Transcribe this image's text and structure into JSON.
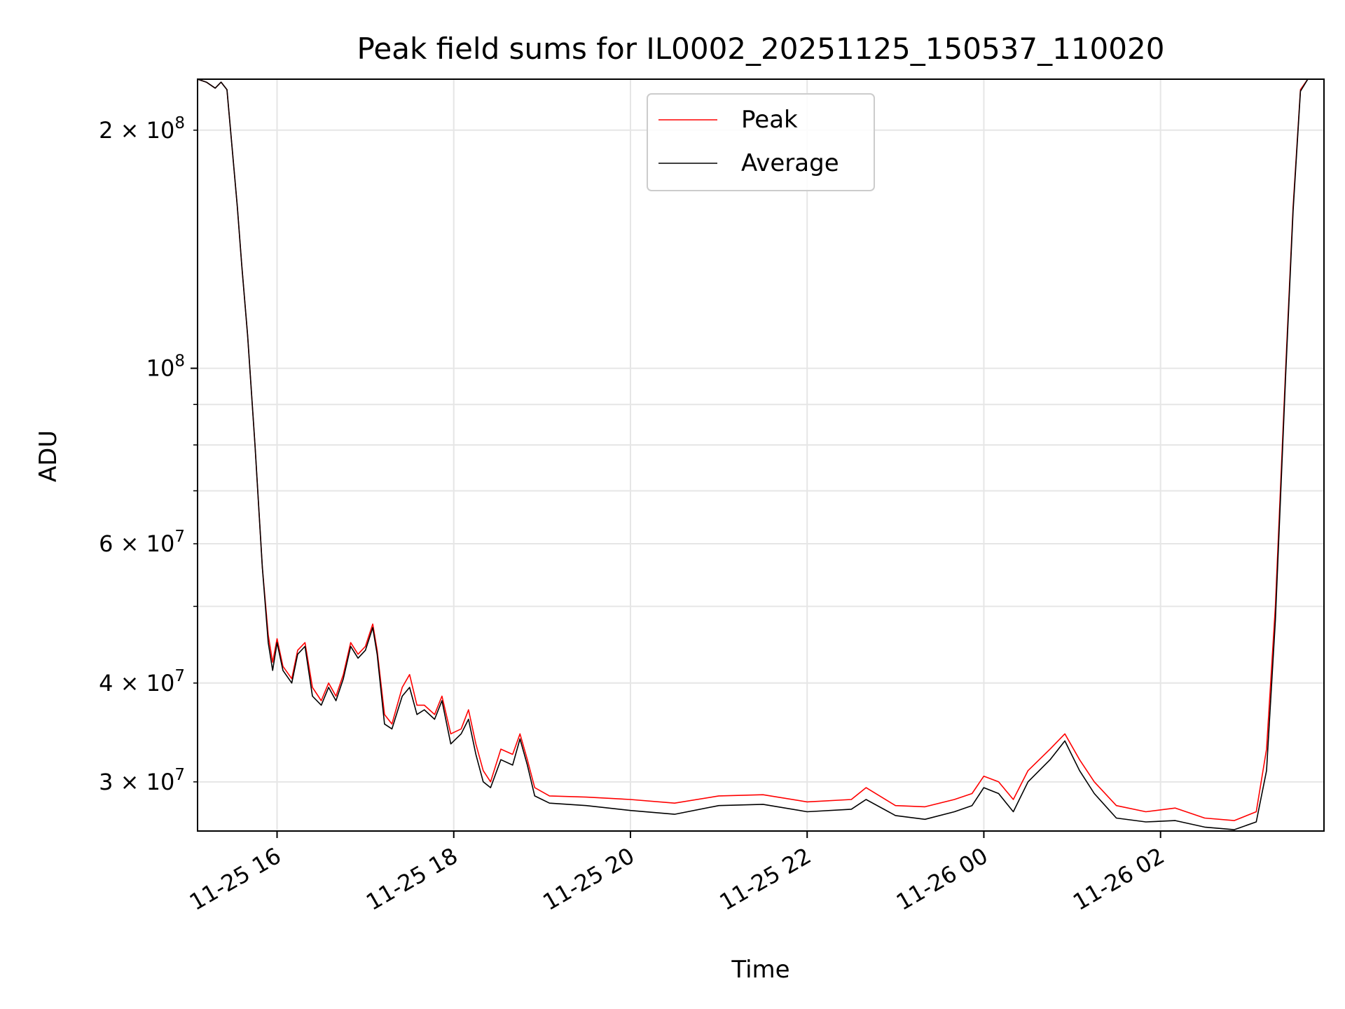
{
  "chart_data": {
    "type": "line",
    "title": "Peak field sums for IL0002_20251125_150537_110020",
    "xlabel": "Time",
    "ylabel": "ADU",
    "y_scale": "log",
    "xlim": [
      "2025-11-25 15:06",
      "2025-11-26 03:51"
    ],
    "ylim": [
      26000000,
      232000000
    ],
    "grid": true,
    "legend_position": "upper center",
    "x_ticks": [
      {
        "t": "2025-11-25 16:00",
        "label": "11-25 16"
      },
      {
        "t": "2025-11-25 18:00",
        "label": "11-25 18"
      },
      {
        "t": "2025-11-25 20:00",
        "label": "11-25 20"
      },
      {
        "t": "2025-11-25 22:00",
        "label": "11-25 22"
      },
      {
        "t": "2025-11-26 00:00",
        "label": "11-26 00"
      },
      {
        "t": "2025-11-26 02:00",
        "label": "11-26 02"
      }
    ],
    "y_ticks_major": [
      {
        "value": 100000000,
        "base": "10",
        "exp": "8"
      }
    ],
    "y_ticks_minor": [
      {
        "value": 30000000,
        "coef": "3",
        "base": "10",
        "exp": "7"
      },
      {
        "value": 40000000,
        "coef": "4",
        "base": "10",
        "exp": "7"
      },
      {
        "value": 60000000,
        "coef": "6",
        "base": "10",
        "exp": "7"
      },
      {
        "value": 200000000,
        "coef": "2",
        "base": "10",
        "exp": "8"
      }
    ],
    "y_ticks_minor_unlabeled": [
      50000000,
      70000000,
      80000000,
      90000000
    ],
    "series": [
      {
        "name": "Peak",
        "color": "#ff0000",
        "points": [
          [
            "2025-11-25 15:06",
            232000000
          ],
          [
            "2025-11-25 15:12",
            230000000
          ],
          [
            "2025-11-25 15:18",
            226000000
          ],
          [
            "2025-11-25 15:22",
            230000000
          ],
          [
            "2025-11-25 15:26",
            225000000
          ],
          [
            "2025-11-25 15:33",
            160000000
          ],
          [
            "2025-11-25 15:36",
            135000000
          ],
          [
            "2025-11-25 15:40",
            110000000
          ],
          [
            "2025-11-25 15:45",
            80000000
          ],
          [
            "2025-11-25 15:50",
            56000000
          ],
          [
            "2025-11-25 15:54",
            46000000
          ],
          [
            "2025-11-25 15:57",
            42500000
          ],
          [
            "2025-11-25 16:00",
            45500000
          ],
          [
            "2025-11-25 16:04",
            42000000
          ],
          [
            "2025-11-25 16:10",
            40500000
          ],
          [
            "2025-11-25 16:14",
            44000000
          ],
          [
            "2025-11-25 16:19",
            45000000
          ],
          [
            "2025-11-25 16:24",
            39500000
          ],
          [
            "2025-11-25 16:30",
            38000000
          ],
          [
            "2025-11-25 16:35",
            40000000
          ],
          [
            "2025-11-25 16:40",
            38500000
          ],
          [
            "2025-11-25 16:45",
            41000000
          ],
          [
            "2025-11-25 16:50",
            45000000
          ],
          [
            "2025-11-25 16:55",
            43500000
          ],
          [
            "2025-11-25 17:00",
            44500000
          ],
          [
            "2025-11-25 17:05",
            47500000
          ],
          [
            "2025-11-25 17:08",
            44000000
          ],
          [
            "2025-11-25 17:13",
            36500000
          ],
          [
            "2025-11-25 17:18",
            35500000
          ],
          [
            "2025-11-25 17:25",
            39500000
          ],
          [
            "2025-11-25 17:30",
            41000000
          ],
          [
            "2025-11-25 17:35",
            37500000
          ],
          [
            "2025-11-25 17:40",
            37500000
          ],
          [
            "2025-11-25 17:47",
            36500000
          ],
          [
            "2025-11-25 17:52",
            38500000
          ],
          [
            "2025-11-25 17:58",
            34500000
          ],
          [
            "2025-11-25 18:05",
            35000000
          ],
          [
            "2025-11-25 18:10",
            37000000
          ],
          [
            "2025-11-25 18:15",
            33500000
          ],
          [
            "2025-11-25 18:20",
            31000000
          ],
          [
            "2025-11-25 18:25",
            30000000
          ],
          [
            "2025-11-25 18:32",
            33000000
          ],
          [
            "2025-11-25 18:40",
            32500000
          ],
          [
            "2025-11-25 18:45",
            34500000
          ],
          [
            "2025-11-25 18:50",
            32000000
          ],
          [
            "2025-11-25 18:55",
            29500000
          ],
          [
            "2025-11-25 19:05",
            28800000
          ],
          [
            "2025-11-25 19:30",
            28700000
          ],
          [
            "2025-11-25 20:00",
            28500000
          ],
          [
            "2025-11-25 20:30",
            28200000
          ],
          [
            "2025-11-25 21:00",
            28800000
          ],
          [
            "2025-11-25 21:30",
            28900000
          ],
          [
            "2025-11-25 22:00",
            28300000
          ],
          [
            "2025-11-25 22:30",
            28500000
          ],
          [
            "2025-11-25 22:40",
            29500000
          ],
          [
            "2025-11-25 23:00",
            28000000
          ],
          [
            "2025-11-25 23:20",
            27900000
          ],
          [
            "2025-11-25 23:40",
            28500000
          ],
          [
            "2025-11-25 23:52",
            29000000
          ],
          [
            "2025-11-26 00:00",
            30500000
          ],
          [
            "2025-11-26 00:10",
            30000000
          ],
          [
            "2025-11-26 00:20",
            28500000
          ],
          [
            "2025-11-26 00:30",
            31000000
          ],
          [
            "2025-11-26 00:45",
            33000000
          ],
          [
            "2025-11-26 00:55",
            34500000
          ],
          [
            "2025-11-26 01:05",
            32000000
          ],
          [
            "2025-11-26 01:15",
            30000000
          ],
          [
            "2025-11-26 01:30",
            28000000
          ],
          [
            "2025-11-26 01:50",
            27500000
          ],
          [
            "2025-11-26 02:10",
            27800000
          ],
          [
            "2025-11-26 02:30",
            27000000
          ],
          [
            "2025-11-26 02:50",
            26800000
          ],
          [
            "2025-11-26 03:05",
            27500000
          ],
          [
            "2025-11-26 03:12",
            33000000
          ],
          [
            "2025-11-26 03:18",
            50000000
          ],
          [
            "2025-11-26 03:25",
            100000000
          ],
          [
            "2025-11-26 03:30",
            160000000
          ],
          [
            "2025-11-26 03:35",
            225000000
          ],
          [
            "2025-11-26 03:40",
            232000000
          ],
          [
            "2025-11-26 03:51",
            232000000
          ]
        ]
      },
      {
        "name": "Average",
        "color": "#000000",
        "points": [
          [
            "2025-11-25 15:06",
            232000000
          ],
          [
            "2025-11-25 15:12",
            230000000
          ],
          [
            "2025-11-25 15:18",
            226000000
          ],
          [
            "2025-11-25 15:22",
            230000000
          ],
          [
            "2025-11-25 15:26",
            225000000
          ],
          [
            "2025-11-25 15:33",
            160000000
          ],
          [
            "2025-11-25 15:36",
            135000000
          ],
          [
            "2025-11-25 15:40",
            110000000
          ],
          [
            "2025-11-25 15:45",
            80000000
          ],
          [
            "2025-11-25 15:50",
            56000000
          ],
          [
            "2025-11-25 15:54",
            45000000
          ],
          [
            "2025-11-25 15:57",
            41500000
          ],
          [
            "2025-11-25 16:00",
            45000000
          ],
          [
            "2025-11-25 16:04",
            41500000
          ],
          [
            "2025-11-25 16:10",
            40000000
          ],
          [
            "2025-11-25 16:14",
            43500000
          ],
          [
            "2025-11-25 16:19",
            44500000
          ],
          [
            "2025-11-25 16:24",
            38500000
          ],
          [
            "2025-11-25 16:30",
            37500000
          ],
          [
            "2025-11-25 16:35",
            39500000
          ],
          [
            "2025-11-25 16:40",
            38000000
          ],
          [
            "2025-11-25 16:45",
            40500000
          ],
          [
            "2025-11-25 16:50",
            44500000
          ],
          [
            "2025-11-25 16:55",
            43000000
          ],
          [
            "2025-11-25 17:00",
            44000000
          ],
          [
            "2025-11-25 17:05",
            47000000
          ],
          [
            "2025-11-25 17:08",
            43500000
          ],
          [
            "2025-11-25 17:13",
            35500000
          ],
          [
            "2025-11-25 17:18",
            35000000
          ],
          [
            "2025-11-25 17:25",
            38500000
          ],
          [
            "2025-11-25 17:30",
            39500000
          ],
          [
            "2025-11-25 17:35",
            36500000
          ],
          [
            "2025-11-25 17:40",
            37000000
          ],
          [
            "2025-11-25 17:47",
            36000000
          ],
          [
            "2025-11-25 17:52",
            38000000
          ],
          [
            "2025-11-25 17:58",
            33500000
          ],
          [
            "2025-11-25 18:05",
            34500000
          ],
          [
            "2025-11-25 18:10",
            36000000
          ],
          [
            "2025-11-25 18:15",
            32500000
          ],
          [
            "2025-11-25 18:20",
            30000000
          ],
          [
            "2025-11-25 18:25",
            29500000
          ],
          [
            "2025-11-25 18:32",
            32000000
          ],
          [
            "2025-11-25 18:40",
            31500000
          ],
          [
            "2025-11-25 18:45",
            34000000
          ],
          [
            "2025-11-25 18:50",
            31500000
          ],
          [
            "2025-11-25 18:55",
            28800000
          ],
          [
            "2025-11-25 19:05",
            28200000
          ],
          [
            "2025-11-25 19:30",
            28000000
          ],
          [
            "2025-11-25 20:00",
            27600000
          ],
          [
            "2025-11-25 20:30",
            27300000
          ],
          [
            "2025-11-25 21:00",
            28000000
          ],
          [
            "2025-11-25 21:30",
            28100000
          ],
          [
            "2025-11-25 22:00",
            27500000
          ],
          [
            "2025-11-25 22:30",
            27700000
          ],
          [
            "2025-11-25 22:40",
            28500000
          ],
          [
            "2025-11-25 23:00",
            27200000
          ],
          [
            "2025-11-25 23:20",
            26900000
          ],
          [
            "2025-11-25 23:40",
            27500000
          ],
          [
            "2025-11-25 23:52",
            28000000
          ],
          [
            "2025-11-26 00:00",
            29500000
          ],
          [
            "2025-11-26 00:10",
            29000000
          ],
          [
            "2025-11-26 00:20",
            27500000
          ],
          [
            "2025-11-26 00:30",
            30000000
          ],
          [
            "2025-11-26 00:45",
            32000000
          ],
          [
            "2025-11-26 00:55",
            33800000
          ],
          [
            "2025-11-26 01:05",
            31000000
          ],
          [
            "2025-11-26 01:15",
            29000000
          ],
          [
            "2025-11-26 01:30",
            27000000
          ],
          [
            "2025-11-26 01:50",
            26700000
          ],
          [
            "2025-11-26 02:10",
            26800000
          ],
          [
            "2025-11-26 02:30",
            26300000
          ],
          [
            "2025-11-26 02:50",
            26100000
          ],
          [
            "2025-11-26 03:05",
            26700000
          ],
          [
            "2025-11-26 03:12",
            31000000
          ],
          [
            "2025-11-26 03:18",
            48000000
          ],
          [
            "2025-11-26 03:25",
            98000000
          ],
          [
            "2025-11-26 03:30",
            158000000
          ],
          [
            "2025-11-26 03:35",
            224000000
          ],
          [
            "2025-11-26 03:40",
            232000000
          ],
          [
            "2025-11-26 03:51",
            232000000
          ]
        ]
      }
    ]
  }
}
